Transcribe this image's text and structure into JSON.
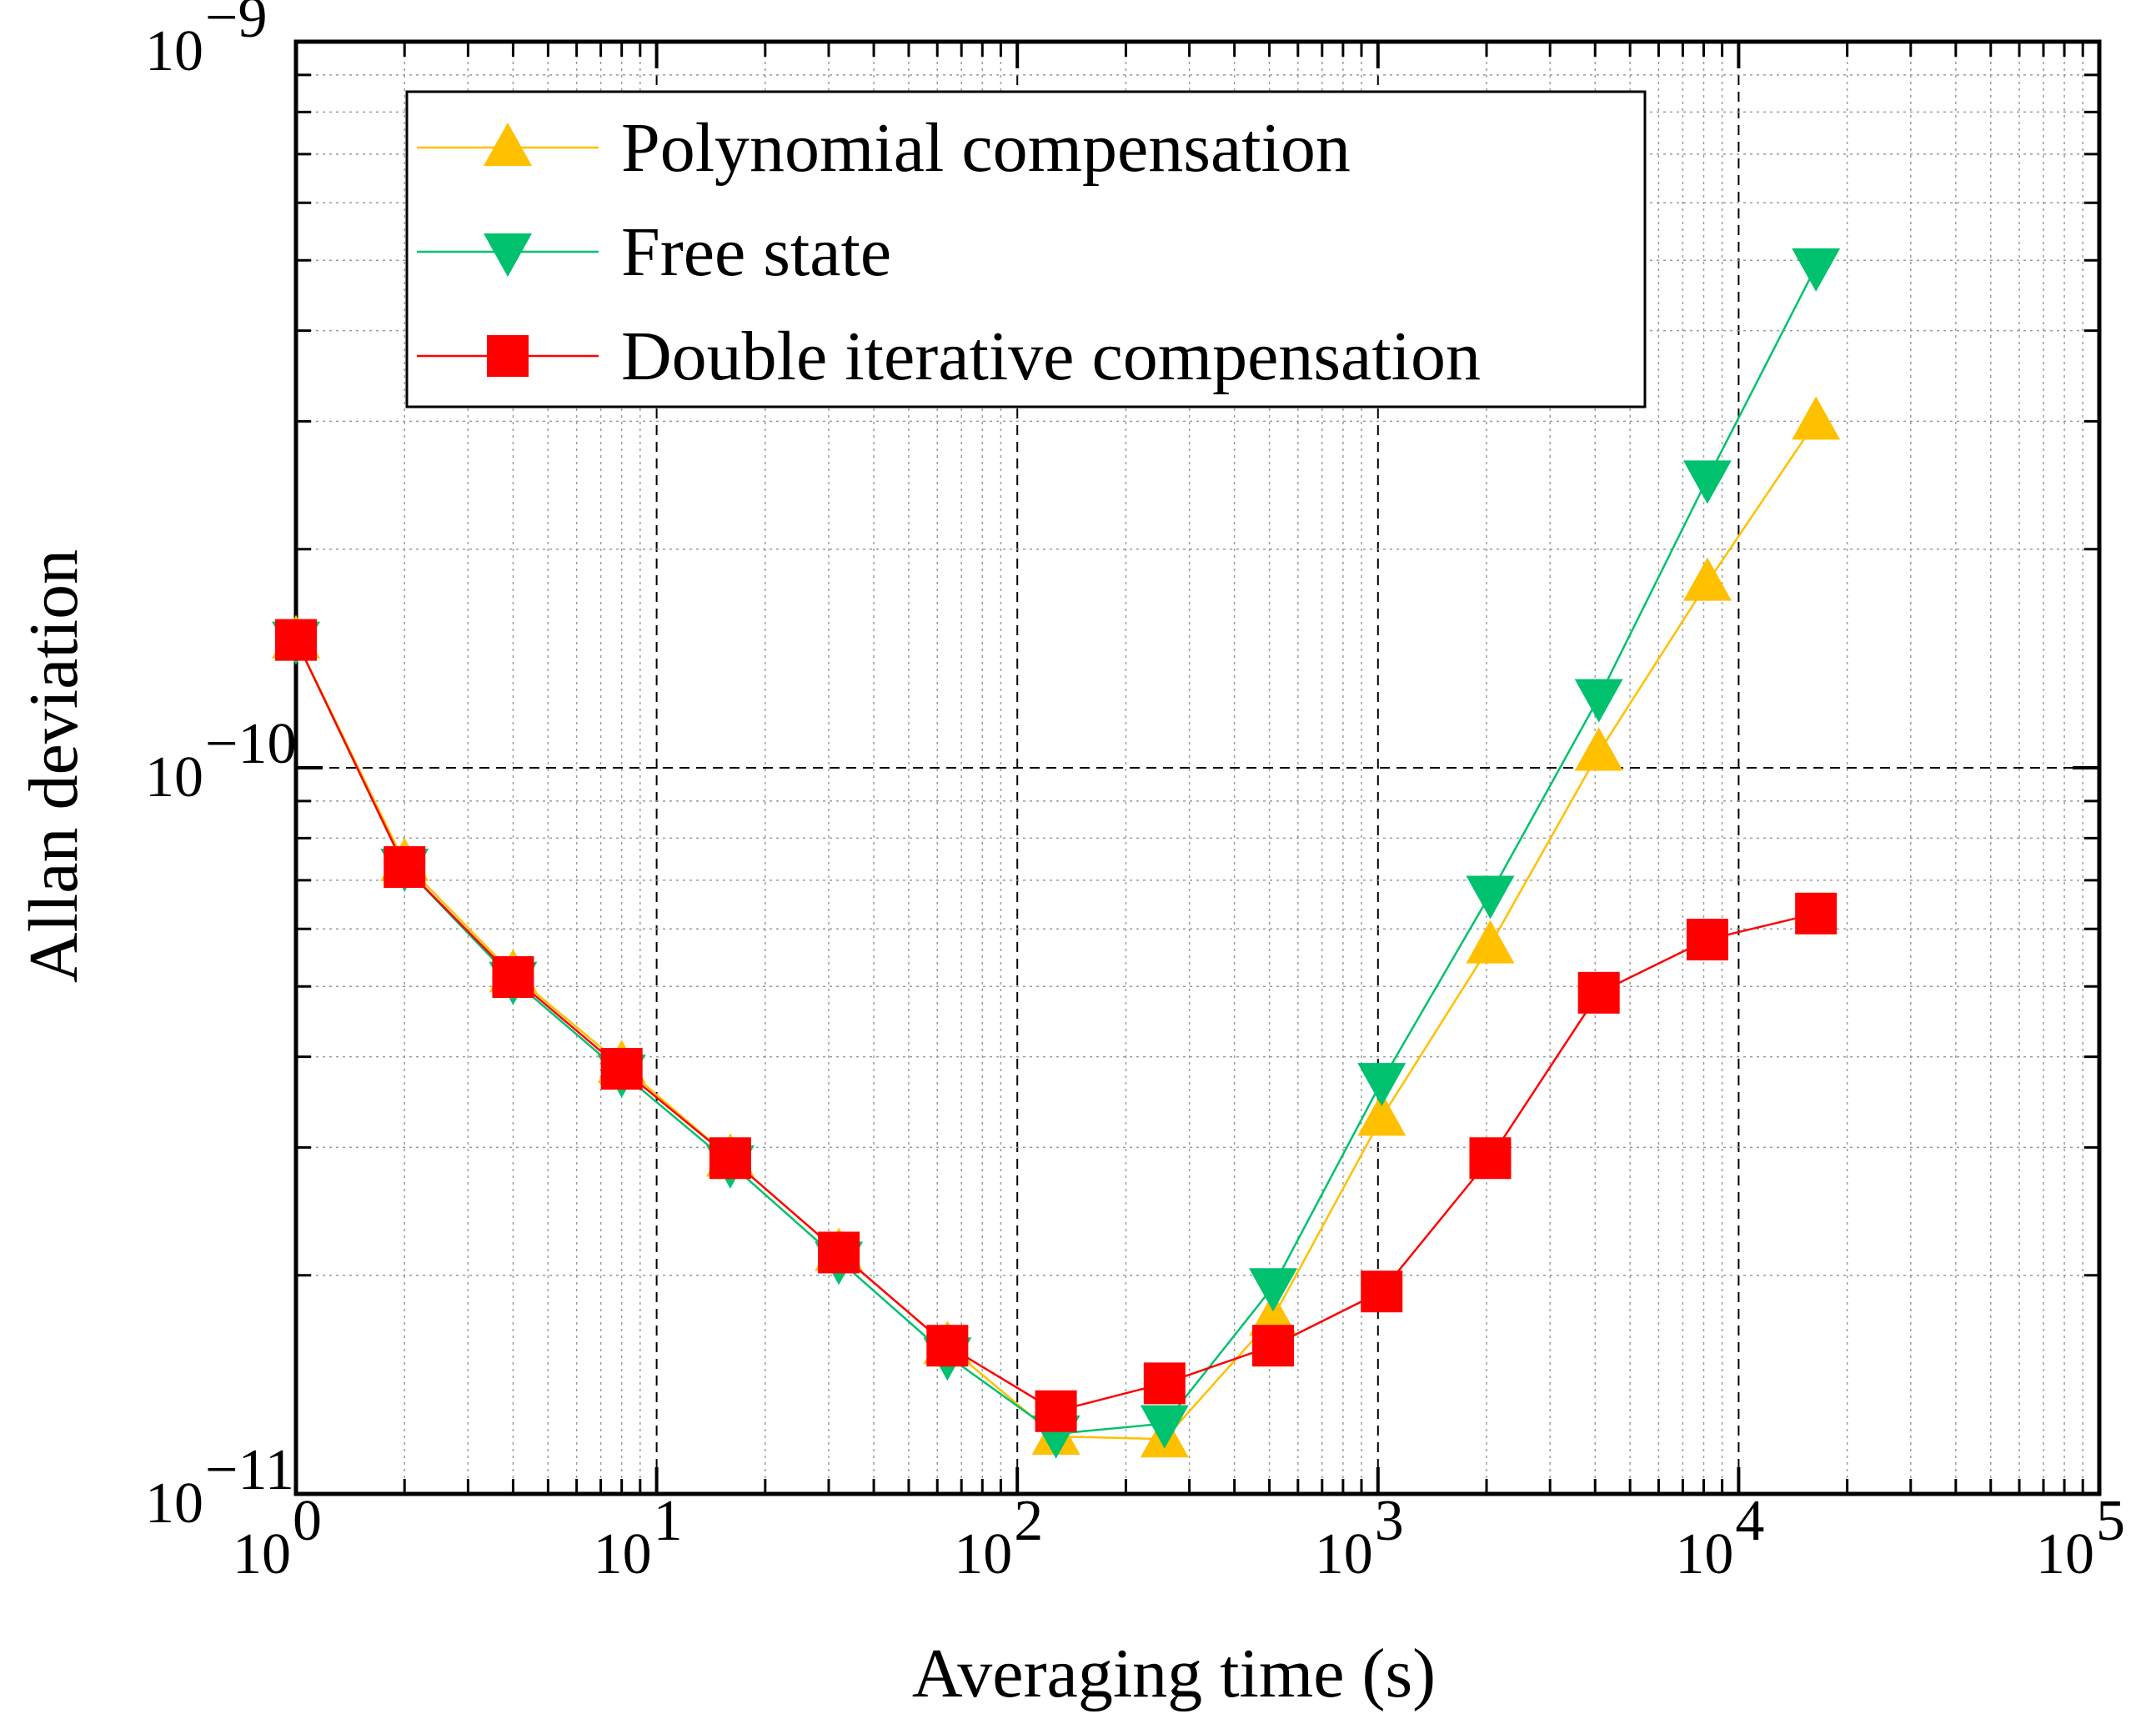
{
  "chart_data": {
    "type": "line",
    "scale": {
      "x": "log",
      "y": "log"
    },
    "xlabel": "Averaging time (s)",
    "ylabel": "Allan deviation",
    "xlim": [
      1,
      100000
    ],
    "ylim": [
      1e-11,
      1e-09
    ],
    "x_ticks": [
      {
        "base": "10",
        "exp": "0",
        "value": 1
      },
      {
        "base": "10",
        "exp": "1",
        "value": 10
      },
      {
        "base": "10",
        "exp": "2",
        "value": 100
      },
      {
        "base": "10",
        "exp": "3",
        "value": 1000
      },
      {
        "base": "10",
        "exp": "4",
        "value": 10000
      },
      {
        "base": "10",
        "exp": "5",
        "value": 100000
      }
    ],
    "y_ticks": [
      {
        "base": "10",
        "exp": "−11",
        "value": 1e-11
      },
      {
        "base": "10",
        "exp": "−10",
        "value": 1e-10
      },
      {
        "base": "10",
        "exp": "−9",
        "value": 1e-09
      }
    ],
    "grid": true,
    "legend_position": "top-left",
    "x": [
      1,
      2,
      4,
      8,
      16,
      32,
      64,
      128,
      256,
      512,
      1024,
      2048,
      4096,
      8192,
      16384
    ],
    "series": [
      {
        "name": "Polynomial compensation",
        "marker": "triangle-up",
        "color": "#FFC000",
        "values": [
          1.5e-10,
          7.4e-11,
          5.2e-11,
          3.9e-11,
          2.9e-11,
          2.15e-11,
          1.6e-11,
          1.2e-11,
          1.19e-11,
          1.75e-11,
          3.3e-11,
          5.7e-11,
          1.05e-10,
          1.8e-10,
          3e-10
        ]
      },
      {
        "name": "Free state",
        "marker": "triangle-down",
        "color": "#00C16E",
        "values": [
          1.5e-10,
          7.3e-11,
          5.1e-11,
          3.8e-11,
          2.85e-11,
          2.1e-11,
          1.55e-11,
          1.21e-11,
          1.25e-11,
          1.93e-11,
          3.7e-11,
          6.7e-11,
          1.25e-10,
          2.5e-10,
          4.9e-10
        ]
      },
      {
        "name": "Double iterative compensation",
        "marker": "square",
        "color": "#FF0000",
        "values": [
          1.5e-10,
          7.3e-11,
          5.15e-11,
          3.85e-11,
          2.9e-11,
          2.15e-11,
          1.6e-11,
          1.3e-11,
          1.42e-11,
          1.6e-11,
          1.9e-11,
          2.9e-11,
          4.9e-11,
          5.8e-11,
          6.3e-11
        ]
      }
    ]
  }
}
